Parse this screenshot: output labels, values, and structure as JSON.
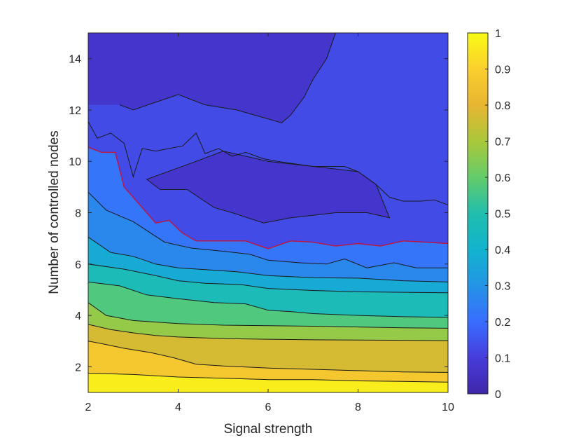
{
  "chart_data": {
    "type": "contour",
    "xlabel": "Signal strength",
    "ylabel": "Number of controlled nodes",
    "xlim": [
      2,
      10
    ],
    "ylim": [
      1,
      15
    ],
    "xticks": [
      2,
      4,
      6,
      8,
      10
    ],
    "yticks": [
      2,
      4,
      6,
      8,
      10,
      12,
      14
    ],
    "colorbar": {
      "range": [
        0,
        1
      ],
      "ticks": [
        0,
        0.1,
        0.2,
        0.3,
        0.4,
        0.5,
        0.6,
        0.7,
        0.8,
        0.9,
        1
      ],
      "tick_labels": [
        "0",
        "0.1",
        "0.2",
        "0.3",
        "0.4",
        "0.5",
        "0.6",
        "0.7",
        "0.8",
        "0.9",
        "1"
      ],
      "colormap": "parula"
    },
    "highlight_contour_color": "#c0143c",
    "contour_levels": [
      {
        "level": 0.9,
        "points": [
          [
            2,
            1.75
          ],
          [
            3,
            1.7
          ],
          [
            4,
            1.6
          ],
          [
            5,
            1.55
          ],
          [
            6,
            1.5
          ],
          [
            7,
            1.5
          ],
          [
            8,
            1.45
          ],
          [
            9,
            1.43
          ],
          [
            10,
            1.4
          ]
        ]
      },
      {
        "level": 0.8,
        "points": [
          [
            2,
            3.0
          ],
          [
            2.3,
            2.9
          ],
          [
            2.8,
            2.72
          ],
          [
            3.4,
            2.55
          ],
          [
            3.9,
            2.35
          ],
          [
            4.4,
            2.1
          ],
          [
            5,
            2.03
          ],
          [
            6,
            1.95
          ],
          [
            7,
            1.9
          ],
          [
            8,
            1.85
          ],
          [
            9,
            1.8
          ],
          [
            10,
            1.78
          ]
        ]
      },
      {
        "level": 0.7,
        "points": [
          [
            2,
            3.65
          ],
          [
            2.5,
            3.45
          ],
          [
            3,
            3.32
          ],
          [
            3.5,
            3.22
          ],
          [
            4,
            3.16
          ],
          [
            5,
            3.1
          ],
          [
            6,
            3.07
          ],
          [
            7,
            3.05
          ],
          [
            8,
            3.04
          ],
          [
            9,
            3.03
          ],
          [
            10,
            3.02
          ]
        ]
      },
      {
        "level": 0.6,
        "points": [
          [
            2,
            4.5
          ],
          [
            2.4,
            4.0
          ],
          [
            3,
            3.8
          ],
          [
            4,
            3.68
          ],
          [
            5,
            3.62
          ],
          [
            6,
            3.6
          ],
          [
            7,
            3.58
          ],
          [
            8,
            3.55
          ],
          [
            9,
            3.52
          ],
          [
            10,
            3.5
          ]
        ]
      },
      {
        "level": 0.5,
        "points": [
          [
            2,
            5.3
          ],
          [
            2.7,
            5.15
          ],
          [
            3.3,
            4.8
          ],
          [
            4,
            4.65
          ],
          [
            4.8,
            4.5
          ],
          [
            5.5,
            4.45
          ],
          [
            6,
            4.2
          ],
          [
            6.5,
            4.15
          ],
          [
            7,
            4.07
          ],
          [
            8,
            4.0
          ],
          [
            9,
            3.95
          ],
          [
            10,
            3.92
          ]
        ]
      },
      {
        "level": 0.4,
        "points": [
          [
            2,
            6.0
          ],
          [
            2.8,
            5.8
          ],
          [
            3.5,
            5.55
          ],
          [
            4,
            5.35
          ],
          [
            4.6,
            5.25
          ],
          [
            5.4,
            5.2
          ],
          [
            6,
            5.05
          ],
          [
            7,
            4.97
          ],
          [
            8,
            4.92
          ],
          [
            9,
            4.9
          ],
          [
            10,
            4.88
          ]
        ]
      },
      {
        "level": 0.3,
        "points": [
          [
            2,
            7.05
          ],
          [
            2.5,
            6.45
          ],
          [
            3,
            6.3
          ],
          [
            3.5,
            6.0
          ],
          [
            4,
            5.85
          ],
          [
            4.6,
            5.78
          ],
          [
            5.3,
            5.7
          ],
          [
            6,
            5.55
          ],
          [
            7,
            5.47
          ],
          [
            8,
            5.45
          ],
          [
            9,
            5.35
          ],
          [
            10,
            5.3
          ]
        ]
      },
      {
        "level": 0.2,
        "points": [
          [
            2,
            8.8
          ],
          [
            2.4,
            8.1
          ],
          [
            3,
            7.65
          ],
          [
            3.7,
            6.85
          ],
          [
            4.3,
            6.62
          ],
          [
            5,
            6.5
          ],
          [
            5.6,
            6.38
          ],
          [
            6,
            6.15
          ],
          [
            6.7,
            6.05
          ],
          [
            7.3,
            6.0
          ],
          [
            7.7,
            6.2
          ],
          [
            8.2,
            5.85
          ],
          [
            8.8,
            6.05
          ],
          [
            9.3,
            5.85
          ],
          [
            10,
            5.85
          ]
        ]
      },
      {
        "level": 0.15,
        "points": [
          [
            2,
            10.55
          ],
          [
            2.3,
            10.35
          ],
          [
            2.6,
            10.35
          ],
          [
            2.8,
            9.0
          ],
          [
            3.2,
            8.2
          ],
          [
            3.5,
            7.6
          ],
          [
            3.8,
            7.7
          ],
          [
            4.1,
            7.2
          ],
          [
            4.4,
            6.9
          ],
          [
            5,
            6.9
          ],
          [
            5.5,
            6.9
          ],
          [
            6,
            6.6
          ],
          [
            6.5,
            6.9
          ],
          [
            7,
            6.85
          ],
          [
            7.5,
            6.7
          ],
          [
            8,
            6.8
          ],
          [
            8.5,
            6.7
          ],
          [
            9,
            6.9
          ],
          [
            9.5,
            6.85
          ],
          [
            10,
            6.8
          ]
        ]
      },
      {
        "level": 0.1,
        "points": [
          [
            2,
            11.55
          ],
          [
            2.2,
            10.9
          ],
          [
            2.5,
            11.1
          ],
          [
            2.8,
            10.7
          ],
          [
            3.0,
            9.4
          ],
          [
            3.2,
            10.5
          ],
          [
            3.5,
            10.4
          ],
          [
            3.8,
            10.5
          ],
          [
            4.1,
            10.6
          ],
          [
            4.4,
            11.1
          ],
          [
            4.6,
            10.3
          ],
          [
            4.9,
            10.5
          ],
          [
            5.2,
            10.2
          ],
          [
            5.5,
            10.35
          ],
          [
            5.9,
            10.1
          ],
          [
            6.2,
            10.0
          ],
          [
            6.6,
            9.9
          ],
          [
            7,
            9.8
          ],
          [
            7.4,
            9.8
          ],
          [
            7.7,
            9.8
          ],
          [
            8,
            9.6
          ],
          [
            8.4,
            9.1
          ],
          [
            8.7,
            8.6
          ],
          [
            9,
            8.45
          ],
          [
            9.4,
            8.45
          ],
          [
            9.7,
            8.5
          ],
          [
            10,
            8.3
          ]
        ]
      },
      {
        "level": 0.05,
        "points": [
          [
            2.7,
            12.2
          ],
          [
            3.0,
            12.0
          ],
          [
            3.5,
            12.3
          ],
          [
            4,
            12.6
          ],
          [
            4.6,
            12.2
          ],
          [
            5.3,
            12.0
          ],
          [
            5.9,
            11.7
          ],
          [
            6.3,
            11.5
          ],
          [
            6.5,
            11.8
          ],
          [
            6.8,
            12.5
          ],
          [
            7,
            13.2
          ],
          [
            7.3,
            14.0
          ],
          [
            7.5,
            15
          ]
        ]
      }
    ]
  }
}
